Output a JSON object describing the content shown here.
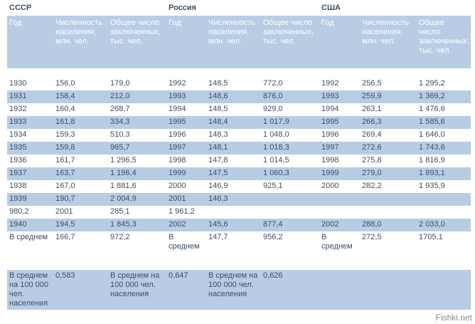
{
  "countries": {
    "ussr": "СССР",
    "russia": "Россия",
    "usa": "США"
  },
  "headers": {
    "year": "Год",
    "population": "Численность населения, млн. чел.",
    "prisoners": "Общее число заключенных, тыс. чел."
  },
  "rows": [
    [
      "1930",
      "156,0",
      "179,0",
      "1992",
      "148,5",
      "772,0",
      "1992",
      "256,5",
      "1 295,2"
    ],
    [
      "1931",
      "158,4",
      "212,0",
      "1993",
      "148,6",
      "876,0",
      "1993",
      "259,9",
      "1 369,2"
    ],
    [
      "1932",
      "160,4",
      "268,7",
      "1994",
      "148,5",
      "929,0",
      "1994",
      "263,1",
      "1 476,6"
    ],
    [
      "1933",
      "161,8",
      "334,3",
      "1995",
      "148,4",
      "1 017,9",
      "1995",
      "266,3",
      "1 585,6"
    ],
    [
      "1934",
      "159,3",
      "510,3",
      "1996",
      "148,3",
      "1 048,0",
      "1996",
      "269,4",
      "1 646,0"
    ],
    [
      "1935",
      "159,8",
      "965,7",
      "1997",
      "148,1",
      "1 018,3",
      "1997",
      "272,6",
      "1 743,6"
    ],
    [
      "1936",
      "161,7",
      "1 296,5",
      "1998",
      "147,8",
      "1 014,5",
      "1998",
      "275,8",
      "1 816,9"
    ],
    [
      "1937",
      "163,7",
      "1 196,4",
      "1999",
      "147,5",
      "1 060,3",
      "1999",
      "279,0",
      "1 893,1"
    ],
    [
      "1938",
      "167,0",
      "1 881,6",
      "2000",
      "146,9",
      "925,1",
      "2000",
      "282,2",
      "1 935,9"
    ],
    [
      "1939",
      "190,7",
      "2 004,9",
      "2001",
      "146,3",
      "",
      "",
      "",
      ""
    ],
    [
      "980,2",
      "2001",
      "285,1",
      "1 961,2",
      "",
      "",
      "",
      "",
      ""
    ],
    [
      "1940",
      "194,5",
      "1 845,3",
      "2002",
      "145,6",
      "877,4",
      "2002",
      "288,0",
      "2 033,0"
    ]
  ],
  "average": [
    "В среднем",
    "166,7",
    "972,2",
    "В среднем",
    "147,7",
    "956,2",
    "В среднем",
    "272,5",
    "1705,1"
  ],
  "per100k": [
    "В среднем на 100 000 чел. населения",
    "0,583",
    "В среднем на 100 000 чел. населения",
    "0,647",
    "В среднем на 100 000 чел. населения",
    "0,626",
    "",
    "",
    ""
  ],
  "watermark": "Fishki.net"
}
